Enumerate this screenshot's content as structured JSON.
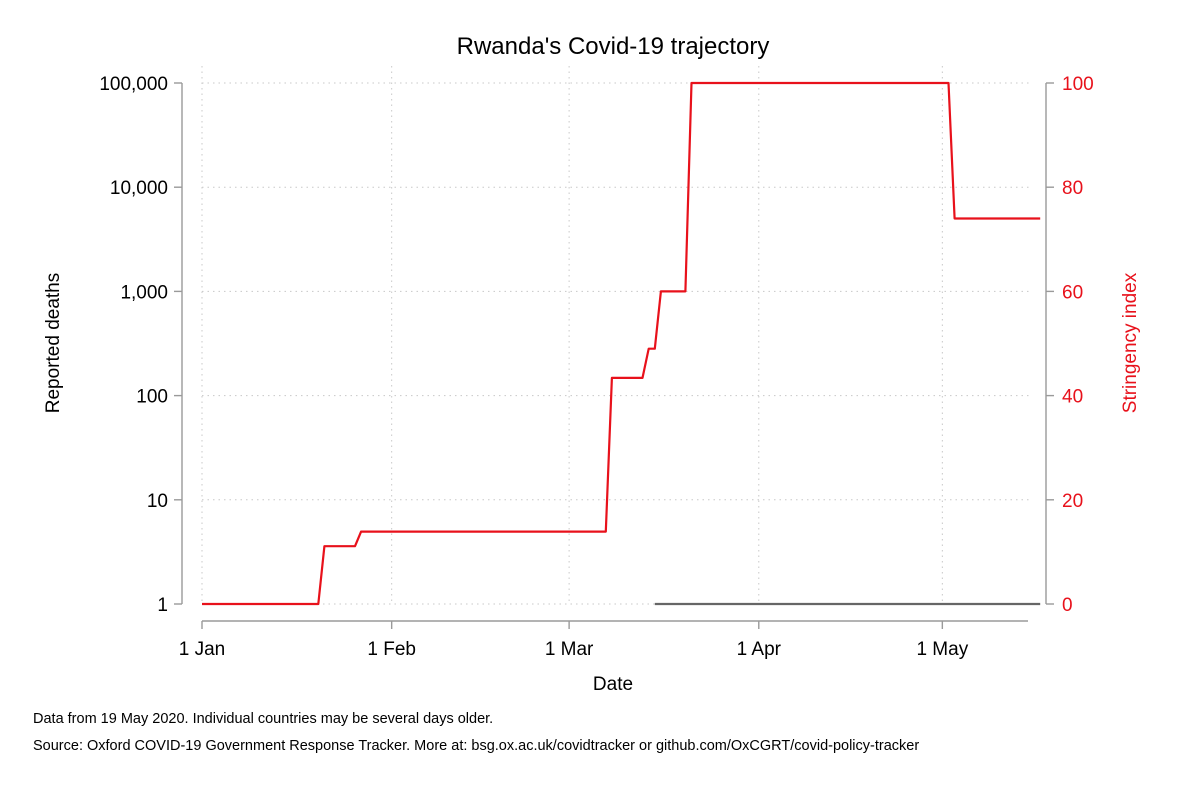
{
  "chart_data": {
    "type": "line",
    "title": "Rwanda's Covid-19 trajectory",
    "xlabel": "Date",
    "ylabel_left": "Reported deaths",
    "ylabel_right": "Stringency index",
    "x_ticks": [
      "1 Jan",
      "1 Feb",
      "1 Mar",
      "1 Apr",
      "1 May"
    ],
    "x_tick_dates": [
      "2020-01-01",
      "2020-02-01",
      "2020-03-01",
      "2020-04-01",
      "2020-05-01"
    ],
    "xlim": [
      "2020-01-01",
      "2020-05-15"
    ],
    "left_axis": {
      "scale": "log",
      "ylim": [
        1,
        100000
      ],
      "ticks": [
        1,
        10,
        100,
        1000,
        10000,
        100000
      ],
      "tick_labels": [
        "1",
        "10",
        "100",
        "1,000",
        "10,000",
        "100,000"
      ]
    },
    "right_axis": {
      "scale": "linear",
      "ylim": [
        0,
        100
      ],
      "ticks": [
        0,
        20,
        40,
        60,
        80,
        100
      ],
      "tick_labels": [
        "0",
        "20",
        "40",
        "60",
        "80",
        "100"
      ],
      "color": "#e8111b"
    },
    "grid": true,
    "series": [
      {
        "color": "#e8111b",
        "axis": "right",
        "points": [
          [
            "2020-01-01",
            0
          ],
          [
            "2020-01-20",
            0
          ],
          [
            "2020-01-21",
            11.1
          ],
          [
            "2020-01-26",
            11.1
          ],
          [
            "2020-01-27",
            13.9
          ],
          [
            "2020-03-07",
            13.9
          ],
          [
            "2020-03-08",
            43.4
          ],
          [
            "2020-03-13",
            43.4
          ],
          [
            "2020-03-14",
            49
          ],
          [
            "2020-03-15",
            49
          ],
          [
            "2020-03-16",
            60
          ],
          [
            "2020-03-20",
            60
          ],
          [
            "2020-03-21",
            100
          ],
          [
            "2020-05-02",
            100
          ],
          [
            "2020-05-03",
            74
          ],
          [
            "2020-05-17",
            74
          ]
        ]
      },
      {
        "color": "#666666",
        "axis": "left",
        "points": [
          [
            "2020-03-15",
            1
          ],
          [
            "2020-05-17",
            1
          ]
        ]
      }
    ]
  },
  "footer": {
    "note": "Data from 19 May 2020. Individual countries may be several days older.",
    "source": "Source: Oxford COVID-19 Government Response Tracker. More at: bsg.ox.ac.uk/covidtracker or github.com/OxCGRT/covid-policy-tracker"
  }
}
